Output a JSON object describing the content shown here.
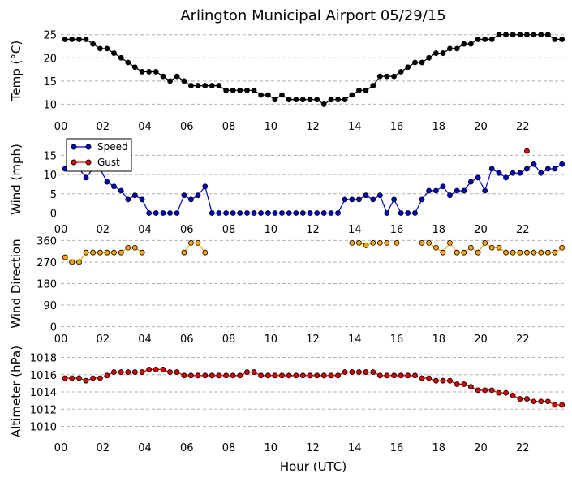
{
  "title": "Arlington Municipal Airport 05/29/15",
  "xlabel": "Hour (UTC)",
  "xticks": [
    "00",
    "02",
    "04",
    "06",
    "08",
    "10",
    "12",
    "14",
    "16",
    "18",
    "20",
    "22"
  ],
  "colors": {
    "temp": "#000000",
    "speed": "#0000cc",
    "gust": "#ff0000",
    "dir": "#ffa500",
    "dir_edge": "#000000",
    "alt": "#dd0000"
  },
  "chart_data": [
    {
      "type": "line",
      "name": "temperature",
      "ylabel": "Temp (°C)",
      "ylim": [
        8.5,
        26
      ],
      "yticks": [
        10,
        15,
        20,
        25
      ],
      "x": [
        0.2,
        0.53,
        0.87,
        1.2,
        1.53,
        1.87,
        2.2,
        2.53,
        2.87,
        3.2,
        3.53,
        3.87,
        4.2,
        4.53,
        4.87,
        5.2,
        5.53,
        5.87,
        6.2,
        6.53,
        6.87,
        7.2,
        7.53,
        7.87,
        8.2,
        8.53,
        8.87,
        9.2,
        9.53,
        9.87,
        10.2,
        10.53,
        10.87,
        11.2,
        11.53,
        11.87,
        12.2,
        12.53,
        12.87,
        13.2,
        13.53,
        13.87,
        14.2,
        14.53,
        14.87,
        15.2,
        15.53,
        15.87,
        16.2,
        16.53,
        16.87,
        17.2,
        17.53,
        17.87,
        18.2,
        18.53,
        18.87,
        19.2,
        19.53,
        19.87,
        20.2,
        20.53,
        20.87,
        21.2,
        21.53,
        21.87,
        22.2,
        22.53,
        22.87,
        23.2,
        23.53,
        23.87
      ],
      "values": [
        24,
        24,
        24,
        24,
        23,
        22,
        22,
        21,
        20,
        19,
        18,
        17,
        17,
        17,
        16,
        15,
        16,
        15,
        14,
        14,
        14,
        14,
        14,
        13,
        13,
        13,
        13,
        13,
        12,
        12,
        11,
        12,
        11,
        11,
        11,
        11,
        11,
        10,
        11,
        11,
        11,
        12,
        13,
        13,
        14,
        16,
        16,
        16,
        17,
        18,
        19,
        19,
        20,
        21,
        21,
        22,
        22,
        23,
        23,
        24,
        24,
        24,
        25,
        25,
        25,
        25,
        25,
        25,
        25,
        25,
        24,
        24
      ]
    },
    {
      "type": "line",
      "name": "wind",
      "ylabel": "Wind (mph)",
      "ylim": [
        -2,
        19.5
      ],
      "yticks": [
        0,
        5,
        10,
        15
      ],
      "legend": [
        "Speed",
        "Gust"
      ],
      "speed_x": [
        0.2,
        0.53,
        0.87,
        1.2,
        1.53,
        1.87,
        2.2,
        2.53,
        2.87,
        3.2,
        3.53,
        3.87,
        4.2,
        4.53,
        4.87,
        5.2,
        5.53,
        5.87,
        6.2,
        6.53,
        6.87,
        7.2,
        7.53,
        7.87,
        8.2,
        8.53,
        8.87,
        9.2,
        9.53,
        9.87,
        10.2,
        10.53,
        10.87,
        11.2,
        11.53,
        11.87,
        12.2,
        12.53,
        12.87,
        13.2,
        13.53,
        13.87,
        14.2,
        14.53,
        14.87,
        15.2,
        15.53,
        15.87,
        16.2,
        16.53,
        16.87,
        17.2,
        17.53,
        17.87,
        18.2,
        18.53,
        18.87,
        19.2,
        19.53,
        19.87,
        20.2,
        20.53,
        20.87,
        21.2,
        21.53,
        21.87,
        22.2,
        22.53,
        22.87,
        23.2,
        23.53,
        23.87
      ],
      "speed": [
        11.5,
        11.5,
        11.5,
        9.2,
        11.5,
        11.5,
        8.1,
        6.9,
        5.8,
        3.5,
        4.6,
        3.5,
        0,
        0,
        0,
        0,
        0,
        4.6,
        3.5,
        4.6,
        6.9,
        0,
        0,
        0,
        0,
        0,
        0,
        0,
        0,
        0,
        0,
        0,
        0,
        0,
        0,
        0,
        0,
        0,
        0,
        0,
        3.5,
        3.5,
        3.5,
        4.6,
        3.5,
        4.6,
        0,
        3.5,
        0,
        0,
        0,
        3.5,
        5.8,
        5.8,
        6.9,
        4.6,
        5.8,
        5.8,
        8.1,
        9.2,
        5.8,
        11.5,
        10.4,
        9.2,
        10.4,
        10.4,
        11.5,
        12.7,
        10.4,
        11.5,
        11.5,
        12.7
      ],
      "gust_x": [
        22.2
      ],
      "gust": [
        16.1
      ]
    },
    {
      "type": "scatter",
      "name": "wind_direction",
      "ylabel": "Wind Direction",
      "ylim": [
        -15,
        375
      ],
      "yticks": [
        0,
        90,
        180,
        270,
        360
      ],
      "segments": [
        {
          "x": [
            0.2,
            0.53,
            0.87,
            1.2,
            1.53,
            1.87,
            2.2,
            2.53,
            2.87,
            3.2,
            3.53,
            3.87
          ],
          "values": [
            290,
            270,
            270,
            310,
            310,
            310,
            310,
            310,
            310,
            330,
            330,
            310
          ]
        },
        {
          "x": [
            5.87,
            6.2,
            6.53,
            6.87
          ],
          "values": [
            310,
            350,
            350,
            310
          ]
        },
        {
          "x": [
            13.87,
            14.2,
            14.53,
            14.87,
            15.2,
            15.53
          ],
          "values": [
            350,
            350,
            340,
            350,
            350,
            350
          ]
        },
        {
          "x": [
            16
          ],
          "values": [
            350
          ]
        },
        {
          "x": [
            17.2,
            17.53,
            17.87,
            18.2,
            18.53,
            18.87,
            19.2,
            19.53,
            19.87,
            20.2,
            20.53,
            20.87,
            21.2,
            21.53,
            21.87,
            22.2,
            22.53,
            22.87,
            23.2,
            23.53,
            23.87
          ],
          "values": [
            350,
            350,
            330,
            310,
            350,
            310,
            310,
            330,
            310,
            350,
            330,
            330,
            310,
            310,
            310,
            310,
            310,
            310,
            310,
            310,
            330
          ]
        }
      ]
    },
    {
      "type": "line",
      "name": "altimeter",
      "ylabel": "Altimeter (hPa)",
      "ylim": [
        1009.3,
        1018.8
      ],
      "yticks": [
        1010,
        1012,
        1014,
        1016,
        1018
      ],
      "x": [
        0.2,
        0.53,
        0.87,
        1.2,
        1.53,
        1.87,
        2.2,
        2.53,
        2.87,
        3.2,
        3.53,
        3.87,
        4.2,
        4.53,
        4.87,
        5.2,
        5.53,
        5.87,
        6.2,
        6.53,
        6.87,
        7.2,
        7.53,
        7.87,
        8.2,
        8.53,
        8.87,
        9.2,
        9.53,
        9.87,
        10.2,
        10.53,
        10.87,
        11.2,
        11.53,
        11.87,
        12.2,
        12.53,
        12.87,
        13.2,
        13.53,
        13.87,
        14.2,
        14.53,
        14.87,
        15.2,
        15.53,
        15.87,
        16.2,
        16.53,
        16.87,
        17.2,
        17.53,
        17.87,
        18.2,
        18.53,
        18.87,
        19.2,
        19.53,
        19.87,
        20.2,
        20.53,
        20.87,
        21.2,
        21.53,
        21.87,
        22.2,
        22.53,
        22.87,
        23.2,
        23.53,
        23.87
      ],
      "values": [
        1015.6,
        1015.6,
        1015.6,
        1015.3,
        1015.6,
        1015.6,
        1015.9,
        1016.3,
        1016.3,
        1016.3,
        1016.3,
        1016.3,
        1016.6,
        1016.6,
        1016.6,
        1016.3,
        1016.3,
        1015.9,
        1015.9,
        1015.9,
        1015.9,
        1015.9,
        1015.9,
        1015.9,
        1015.9,
        1015.9,
        1016.3,
        1016.3,
        1015.9,
        1015.9,
        1015.9,
        1015.9,
        1015.9,
        1015.9,
        1015.9,
        1015.9,
        1015.9,
        1015.9,
        1015.9,
        1015.9,
        1016.3,
        1016.3,
        1016.3,
        1016.3,
        1016.3,
        1015.9,
        1015.9,
        1015.9,
        1015.9,
        1015.9,
        1015.9,
        1015.6,
        1015.6,
        1015.3,
        1015.3,
        1015.3,
        1014.9,
        1014.9,
        1014.6,
        1014.2,
        1014.2,
        1014.2,
        1013.9,
        1013.9,
        1013.6,
        1013.2,
        1013.2,
        1012.9,
        1012.9,
        1012.9,
        1012.5,
        1012.5
      ]
    }
  ]
}
